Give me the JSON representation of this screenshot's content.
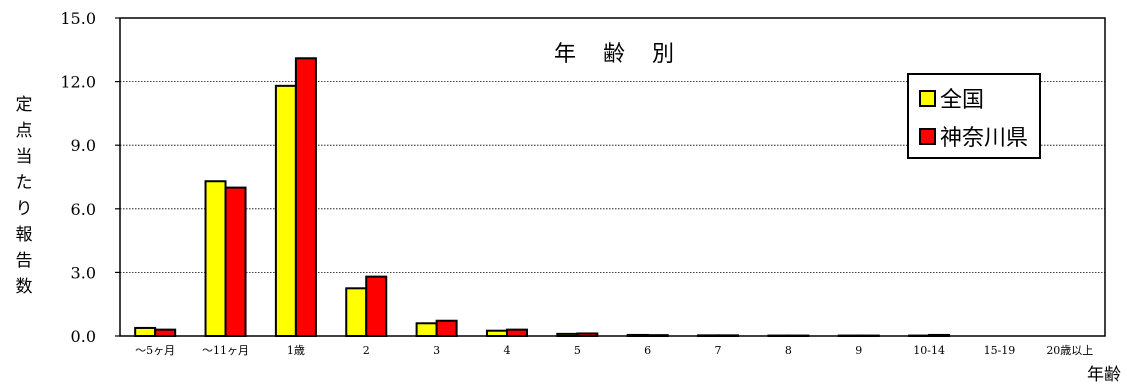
{
  "chart_data": {
    "type": "bar",
    "title": "年 齢 別",
    "xlabel": "年齢",
    "ylabel": "定点当たり報告数",
    "ylim": [
      0,
      15
    ],
    "yticks": [
      "0.0",
      "3.0",
      "6.0",
      "9.0",
      "12.0",
      "15.0"
    ],
    "categories": [
      "～5ヶ月",
      "～11ヶ月",
      "1歳",
      "2",
      "3",
      "4",
      "5",
      "6",
      "7",
      "8",
      "9",
      "10-14",
      "15-19",
      "20歳以上"
    ],
    "series": [
      {
        "name": "全国",
        "color": "#ffff00",
        "values": [
          0.38,
          7.3,
          11.8,
          2.25,
          0.6,
          0.25,
          0.1,
          0.05,
          0.03,
          0.02,
          0.02,
          0.02,
          0.0,
          0.0
        ]
      },
      {
        "name": "神奈川県",
        "color": "#ff0000",
        "values": [
          0.3,
          7.0,
          13.1,
          2.8,
          0.72,
          0.3,
          0.12,
          0.04,
          0.03,
          0.02,
          0.02,
          0.05,
          0.0,
          0.0
        ]
      }
    ],
    "grid": "horizontal-dotted",
    "legend_position": "top-right"
  }
}
